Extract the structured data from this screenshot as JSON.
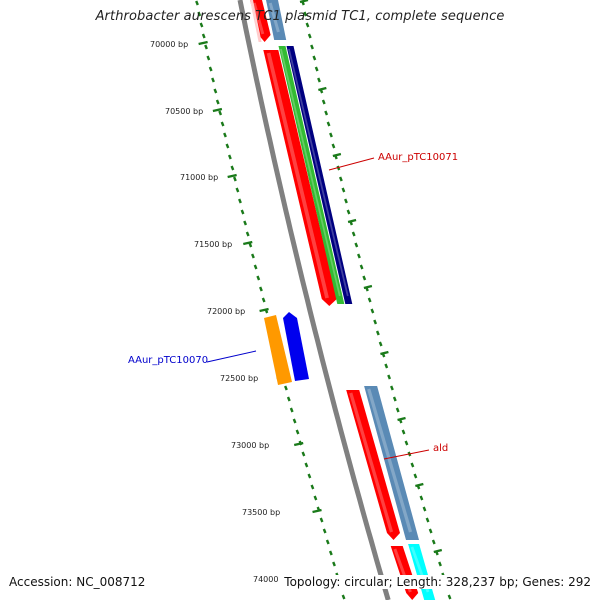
{
  "title": "Arthrobacter aurescens TC1 plasmid TC1, complete sequence",
  "accession": "Accession: NC_008712",
  "stats": "Topology: circular; Length: 328,237 bp; Genes: 292",
  "ruler": [
    {
      "label": "70000 bp"
    },
    {
      "label": "70500 bp"
    },
    {
      "label": "71000 bp"
    },
    {
      "label": "71500 bp"
    },
    {
      "label": "72000 bp"
    },
    {
      "label": "72500 bp"
    },
    {
      "label": "73000 bp"
    },
    {
      "label": "73500 bp"
    },
    {
      "label": "74000 bp"
    }
  ],
  "gene_labels": [
    {
      "text": "AAur_pTC10071",
      "color": "#cc0000"
    },
    {
      "text": "AAur_pTC10070",
      "color": "#0000cc"
    },
    {
      "text": "ald",
      "color": "#cc0000"
    }
  ],
  "colors": {
    "backbone": "#808080",
    "cds": "#ff0000",
    "gene": "#5a8ab5",
    "green": "#33bb33",
    "navy": "#000080",
    "orange": "#ff9900",
    "blue": "#0000ee",
    "cyan": "#00ffff",
    "pink": "#ffcccc",
    "tick": "#1a7a1a"
  }
}
